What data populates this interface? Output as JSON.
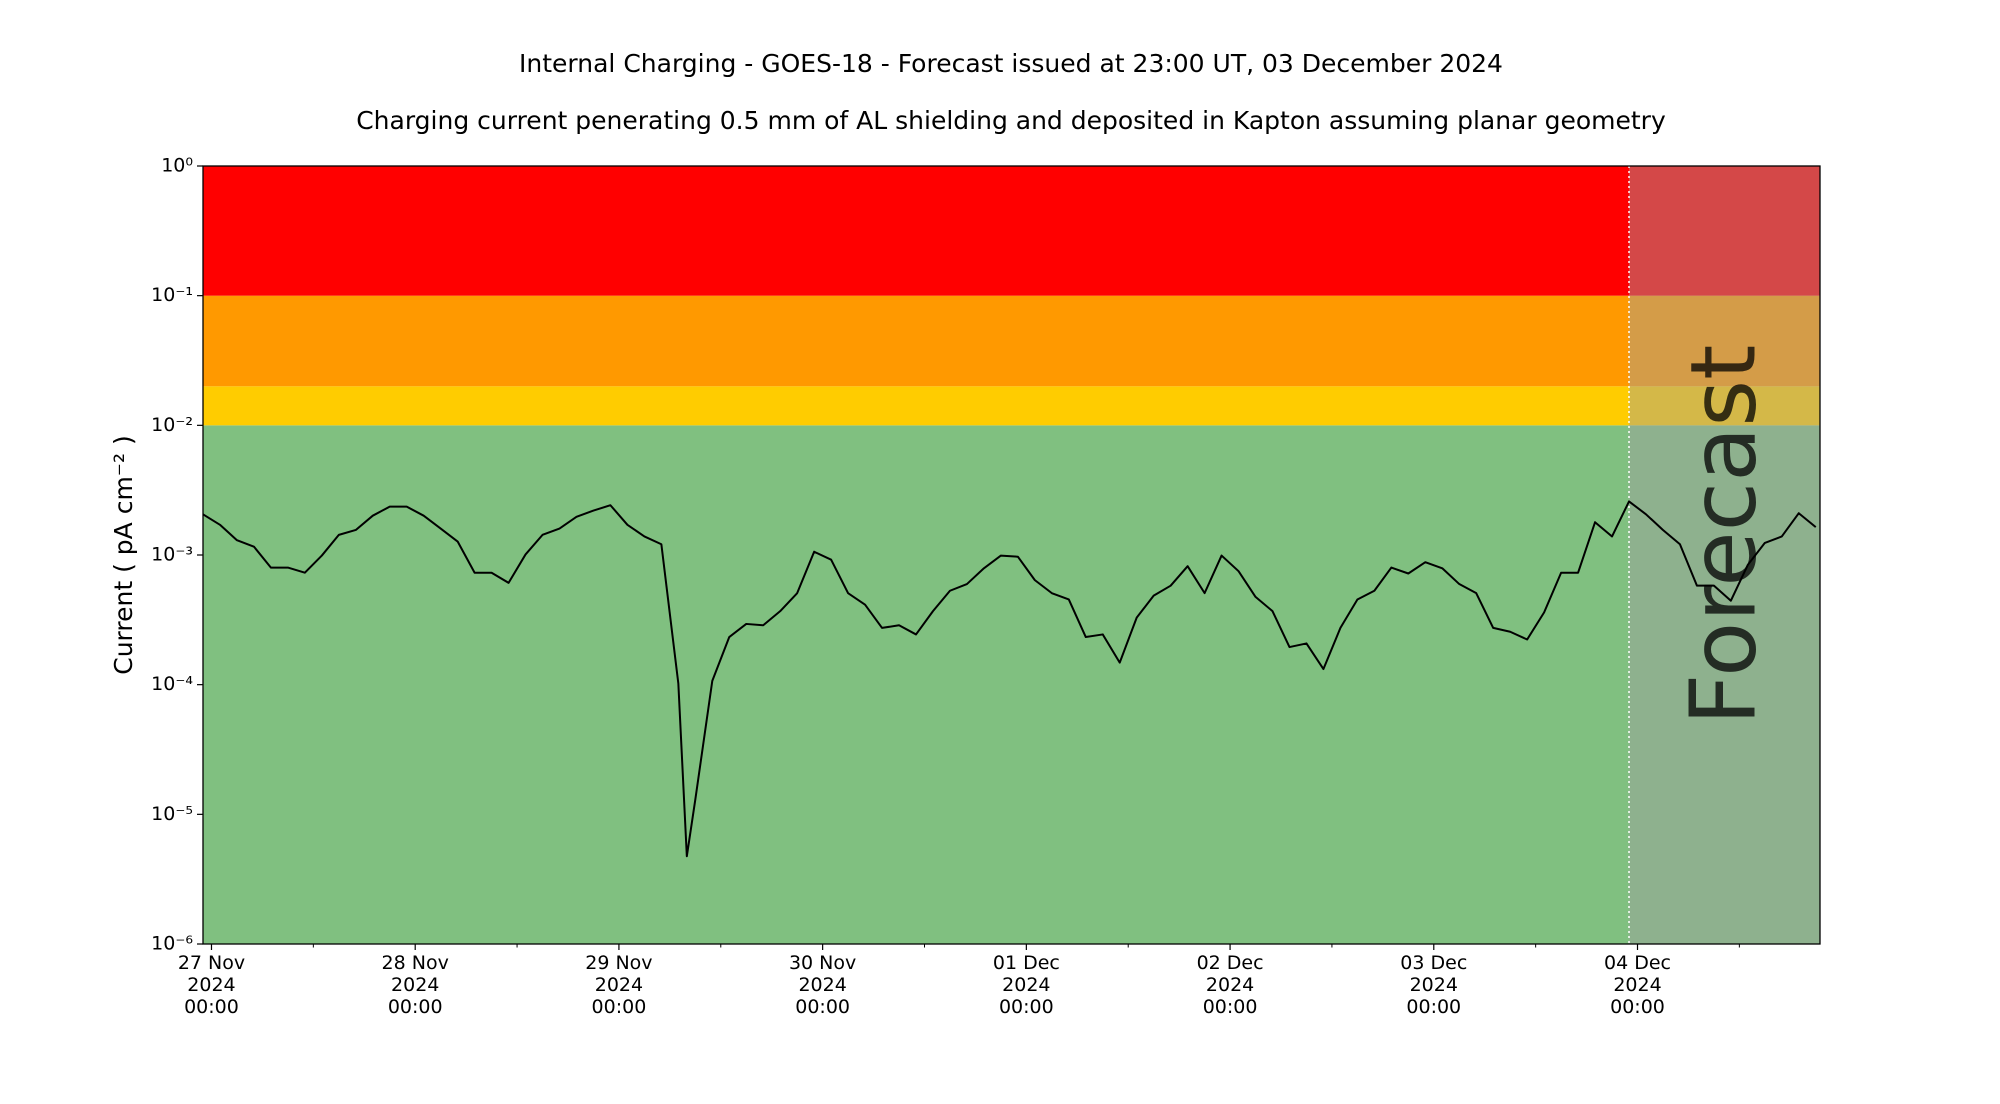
{
  "chart_data": {
    "type": "line",
    "title": "Internal Charging - GOES-18 - Forecast issued at 23:00 UT, 03 December 2024",
    "subtitle": "Charging current penerating 0.5 mm of AL shielding and deposited in Kapton assuming planar geometry",
    "ylabel": "Current ( pA cm⁻² )",
    "log_y": true,
    "ylim": [
      1e-06,
      1
    ],
    "yticks": [
      {
        "value": 1e-06,
        "label": "10⁻⁶"
      },
      {
        "value": 1e-05,
        "label": "10⁻⁵"
      },
      {
        "value": 0.0001,
        "label": "10⁻⁴"
      },
      {
        "value": 0.001,
        "label": "10⁻³"
      },
      {
        "value": 0.01,
        "label": "10⁻²"
      },
      {
        "value": 0.1,
        "label": "10⁻¹"
      },
      {
        "value": 1,
        "label": "10⁰"
      }
    ],
    "xlim": [
      "2024-11-26 23:00",
      "2024-12-04 21:30"
    ],
    "xticks": [
      {
        "value": "2024-11-27 00:00",
        "label": "27 Nov\n2024\n00:00"
      },
      {
        "value": "2024-11-28 00:00",
        "label": "28 Nov\n2024\n00:00"
      },
      {
        "value": "2024-11-29 00:00",
        "label": "29 Nov\n2024\n00:00"
      },
      {
        "value": "2024-11-30 00:00",
        "label": "30 Nov\n2024\n00:00"
      },
      {
        "value": "2024-12-01 00:00",
        "label": "01 Dec\n2024\n00:00"
      },
      {
        "value": "2024-12-02 00:00",
        "label": "02 Dec\n2024\n00:00"
      },
      {
        "value": "2024-12-03 00:00",
        "label": "03 Dec\n2024\n00:00"
      },
      {
        "value": "2024-12-04 00:00",
        "label": "04 Dec\n2024\n00:00"
      }
    ],
    "xticks_minor": [
      "2024-11-27 12:00",
      "2024-11-28 12:00",
      "2024-11-29 12:00",
      "2024-11-30 12:00",
      "2024-12-01 12:00",
      "2024-12-02 12:00",
      "2024-12-03 12:00",
      "2024-12-04 12:00"
    ],
    "zones": [
      {
        "ymin": 1e-06,
        "ymax": 0.01,
        "color": "#80c080"
      },
      {
        "ymin": 0.01,
        "ymax": 0.02,
        "color": "#ffcc00"
      },
      {
        "ymin": 0.02,
        "ymax": 0.1,
        "color": "#ff9900"
      },
      {
        "ymin": 0.1,
        "ymax": 1,
        "color": "#ff0000"
      }
    ],
    "forecast": {
      "start": "2024-12-03 23:00",
      "label": "Forecast",
      "color": "#a0a0a0"
    },
    "x": [
      "2024-11-26 23:00",
      "2024-11-27 01:00",
      "2024-11-27 03:00",
      "2024-11-27 05:00",
      "2024-11-27 07:00",
      "2024-11-27 09:00",
      "2024-11-27 11:00",
      "2024-11-27 13:00",
      "2024-11-27 15:00",
      "2024-11-27 17:00",
      "2024-11-27 19:00",
      "2024-11-27 21:00",
      "2024-11-27 23:00",
      "2024-11-28 01:00",
      "2024-11-28 03:00",
      "2024-11-28 05:00",
      "2024-11-28 07:00",
      "2024-11-28 09:00",
      "2024-11-28 11:00",
      "2024-11-28 13:00",
      "2024-11-28 15:00",
      "2024-11-28 17:00",
      "2024-11-28 19:00",
      "2024-11-28 21:00",
      "2024-11-28 23:00",
      "2024-11-29 01:00",
      "2024-11-29 03:00",
      "2024-11-29 05:00",
      "2024-11-29 07:00",
      "2024-11-29 08:00",
      "2024-11-29 09:00",
      "2024-11-29 11:00",
      "2024-11-29 13:00",
      "2024-11-29 15:00",
      "2024-11-29 17:00",
      "2024-11-29 19:00",
      "2024-11-29 21:00",
      "2024-11-29 23:00",
      "2024-11-30 01:00",
      "2024-11-30 03:00",
      "2024-11-30 05:00",
      "2024-11-30 07:00",
      "2024-11-30 09:00",
      "2024-11-30 11:00",
      "2024-11-30 13:00",
      "2024-11-30 15:00",
      "2024-11-30 17:00",
      "2024-11-30 19:00",
      "2024-11-30 21:00",
      "2024-11-30 23:00",
      "2024-12-01 01:00",
      "2024-12-01 03:00",
      "2024-12-01 05:00",
      "2024-12-01 07:00",
      "2024-12-01 09:00",
      "2024-12-01 11:00",
      "2024-12-01 13:00",
      "2024-12-01 15:00",
      "2024-12-01 17:00",
      "2024-12-01 19:00",
      "2024-12-01 21:00",
      "2024-12-01 23:00",
      "2024-12-02 01:00",
      "2024-12-02 03:00",
      "2024-12-02 05:00",
      "2024-12-02 07:00",
      "2024-12-02 09:00",
      "2024-12-02 11:00",
      "2024-12-02 13:00",
      "2024-12-02 15:00",
      "2024-12-02 17:00",
      "2024-12-02 19:00",
      "2024-12-02 21:00",
      "2024-12-02 23:00",
      "2024-12-03 01:00",
      "2024-12-03 03:00",
      "2024-12-03 05:00",
      "2024-12-03 07:00",
      "2024-12-03 09:00",
      "2024-12-03 11:00",
      "2024-12-03 13:00",
      "2024-12-03 15:00",
      "2024-12-03 17:00",
      "2024-12-03 19:00",
      "2024-12-03 21:00",
      "2024-12-03 23:00",
      "2024-12-04 01:00",
      "2024-12-04 03:00",
      "2024-12-04 05:00",
      "2024-12-04 07:00",
      "2024-12-04 09:00",
      "2024-12-04 11:00",
      "2024-12-04 13:00",
      "2024-12-04 15:00",
      "2024-12-04 17:00",
      "2024-12-04 19:00",
      "2024-12-04 21:00"
    ],
    "color": "#000000",
    "values": [
      0.00206,
      0.00171,
      0.0013,
      0.00116,
      0.0008,
      0.0008,
      0.00073,
      0.00099,
      0.00143,
      0.00156,
      0.00201,
      0.00236,
      0.00236,
      0.00201,
      0.0016,
      0.00127,
      0.00073,
      0.00073,
      0.00061,
      0.00101,
      0.00143,
      0.0016,
      0.00197,
      0.0022,
      0.00242,
      0.00171,
      0.00139,
      0.00121,
      0.000102,
      4.75e-06,
      1.3e-05,
      0.000107,
      0.000233,
      0.000294,
      0.000287,
      0.000369,
      0.000508,
      0.00106,
      0.00092,
      0.000508,
      0.000414,
      0.000274,
      0.000287,
      0.000244,
      0.000369,
      0.00053,
      0.000597,
      0.00079,
      0.00099,
      0.00097,
      0.00064,
      0.000508,
      0.000454,
      0.000233,
      0.000244,
      0.000148,
      0.000329,
      0.000486,
      0.00058,
      0.00082,
      0.000508,
      0.00099,
      0.00075,
      0.000475,
      0.000369,
      0.000195,
      0.000208,
      0.000132,
      0.000274,
      0.000454,
      0.00053,
      0.0008,
      0.00072,
      0.00088,
      0.00079,
      0.000597,
      0.000508,
      0.000274,
      0.000256,
      0.000223,
      0.000361,
      0.00073,
      0.00073,
      0.00179,
      0.00139,
      0.00259,
      0.00206,
      0.00156,
      0.00121,
      0.00058,
      0.00058,
      0.000444,
      0.00084,
      0.00124,
      0.00139,
      0.0021,
      0.00164
    ]
  }
}
